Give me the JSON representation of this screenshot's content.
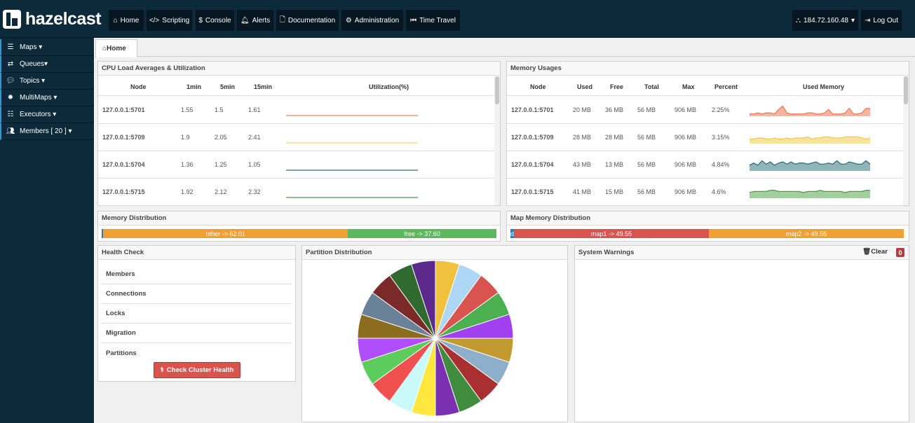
{
  "brand": {
    "name": "hazelcast"
  },
  "nav": {
    "home": "Home",
    "scripting": "Scripting",
    "console": "Console",
    "alerts": "Alerts",
    "documentation": "Documentation",
    "administration": "Administration",
    "time_travel": "Time Travel",
    "cluster_address": "184.72.160.48",
    "logout": "Log Out"
  },
  "sidebar": {
    "items": [
      {
        "label": "Maps",
        "icon": "list-icon"
      },
      {
        "label": "Queues",
        "icon": "exchange-icon"
      },
      {
        "label": "Topics",
        "icon": "comments-icon"
      },
      {
        "label": "MultiMaps",
        "icon": "gear-icon"
      },
      {
        "label": "Executors",
        "icon": "server-icon"
      },
      {
        "label": "Members [ 20 ]",
        "icon": "users-icon"
      }
    ]
  },
  "tabs": {
    "home": "Home"
  },
  "cpu_panel": {
    "title": "CPU Load Averages & Utilization",
    "headers": {
      "node": "Node",
      "m1": "1min",
      "m5": "5min",
      "m15": "15min",
      "util": "Utilization(%)"
    },
    "rows": [
      {
        "node": "127.0.0.1:5701",
        "m1": "1.55",
        "m5": "1.5",
        "m15": "1.61",
        "color": "#f07c5c"
      },
      {
        "node": "127.0.0.1:5709",
        "m1": "1.9",
        "m5": "2.05",
        "m15": "2.41",
        "color": "#f5d76e"
      },
      {
        "node": "127.0.0.1:5704",
        "m1": "1.36",
        "m5": "1.25",
        "m15": "1.05",
        "color": "#2e6f78"
      },
      {
        "node": "127.0.0.1:5715",
        "m1": "1.92",
        "m5": "2.12",
        "m15": "2.32",
        "color": "#4a9a47"
      }
    ]
  },
  "memory_panel": {
    "title": "Memory Usages",
    "headers": {
      "node": "Node",
      "used": "Used",
      "free": "Free",
      "total": "Total",
      "max": "Max",
      "percent": "Percent",
      "used_memory": "Used Memory"
    },
    "rows": [
      {
        "node": "127.0.0.1:5701",
        "used": "20 MB",
        "free": "36 MB",
        "total": "56 MB",
        "max": "906 MB",
        "percent": "2.25%",
        "color": "#f07c5c",
        "fill": "#f5b5a0",
        "spark": [
          2,
          2,
          3,
          2,
          3,
          3,
          2,
          6,
          9,
          3,
          2,
          2,
          2,
          2,
          3,
          3,
          2,
          2,
          3,
          6,
          2,
          2,
          2,
          3,
          7,
          2,
          2,
          3,
          7,
          7
        ]
      },
      {
        "node": "127.0.0.1:5709",
        "used": "28 MB",
        "free": "28 MB",
        "total": "56 MB",
        "max": "906 MB",
        "percent": "3.15%",
        "color": "#efc94c",
        "fill": "#f8e3a0",
        "spark": [
          4,
          4,
          5,
          5,
          4,
          4,
          5,
          4,
          4,
          5,
          4,
          5,
          5,
          5,
          6,
          4,
          5,
          5,
          6,
          6,
          5,
          5,
          5,
          6,
          6,
          6,
          6,
          5,
          4,
          5
        ]
      },
      {
        "node": "127.0.0.1:5704",
        "used": "43 MB",
        "free": "13 MB",
        "total": "56 MB",
        "max": "906 MB",
        "percent": "4.84%",
        "color": "#2e6f78",
        "fill": "#8fb5b9",
        "spark": [
          5,
          7,
          5,
          9,
          6,
          8,
          5,
          7,
          8,
          6,
          8,
          6,
          7,
          7,
          6,
          7,
          8,
          6,
          6,
          7,
          6,
          9,
          6,
          6,
          8,
          7,
          6,
          6,
          9,
          6
        ]
      },
      {
        "node": "127.0.0.1:5715",
        "used": "41 MB",
        "free": "15 MB",
        "total": "56 MB",
        "max": "906 MB",
        "percent": "4.6%",
        "color": "#4a9a47",
        "fill": "#a3cf9e",
        "spark": [
          5,
          6,
          6,
          6,
          6,
          7,
          7,
          6,
          6,
          6,
          6,
          6,
          6,
          5,
          6,
          6,
          6,
          7,
          6,
          6,
          6,
          6,
          6,
          5,
          6,
          6,
          6,
          6,
          7,
          7
        ]
      }
    ]
  },
  "memory_dist": {
    "title": "Memory Distribution",
    "segments": [
      {
        "label": "",
        "value": 0.39,
        "color": "#337ab7"
      },
      {
        "label": "other -> 62.01",
        "value": 62.01,
        "color": "#f0a030"
      },
      {
        "label": "free -> 37.60",
        "value": 37.6,
        "color": "#5cb85c"
      }
    ]
  },
  "map_memory_dist": {
    "title": "Map Memory Distribution",
    "segments": [
      {
        "label": "d",
        "value": 0.9,
        "color": "#337ab7"
      },
      {
        "label": "map1 -> 49.55",
        "value": 49.55,
        "color": "#d9534f"
      },
      {
        "label": "map2 -> 49.55",
        "value": 49.55,
        "color": "#f0a030"
      }
    ]
  },
  "health_check": {
    "title": "Health Check",
    "items": [
      "Members",
      "Connections",
      "Locks",
      "Migration",
      "Partitions"
    ],
    "button": "Check Cluster Health"
  },
  "partition_dist": {
    "title": "Partition Distribution",
    "slice_colors": [
      "#efc13e",
      "#aed6f5",
      "#d9534f",
      "#4caf50",
      "#a040ee",
      "#c29a30",
      "#8eafc9",
      "#a83030",
      "#3f8c3f",
      "#7a30b0",
      "#ffe740",
      "#c9f9f9",
      "#f05050",
      "#5ccc5c",
      "#b04dff",
      "#8c6d20",
      "#6a8298",
      "#7b2a2a",
      "#2f6a2f",
      "#5b2a8c"
    ]
  },
  "warnings": {
    "title": "System Warnings",
    "clear": "Clear",
    "count": "0"
  }
}
